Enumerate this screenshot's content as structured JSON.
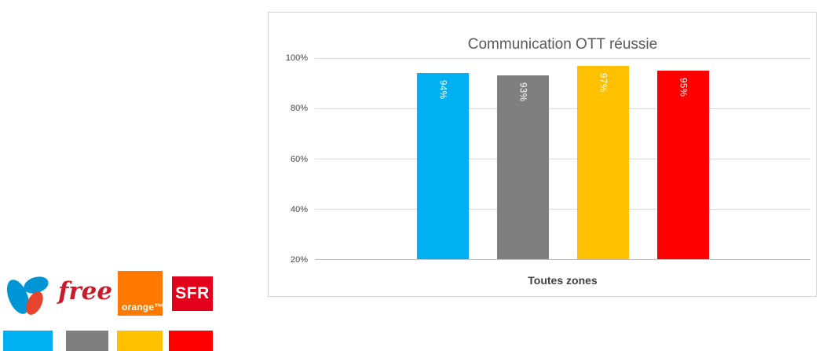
{
  "chart_data": {
    "type": "bar",
    "title": "Communication OTT réussie",
    "xlabel": "Toutes zones",
    "categories": [
      "Toutes zones"
    ],
    "series": [
      {
        "name": "Bouygues Telecom",
        "values": [
          94
        ],
        "label": "94%",
        "color": "#00B0F0"
      },
      {
        "name": "Free",
        "values": [
          93
        ],
        "label": "93%",
        "color": "#7F7F7F"
      },
      {
        "name": "Orange",
        "values": [
          97
        ],
        "label": "97%",
        "color": "#FFC000"
      },
      {
        "name": "SFR",
        "values": [
          95
        ],
        "label": "95%",
        "color": "#FF0000"
      }
    ],
    "ylim": [
      20,
      100
    ],
    "y_ticks": [
      "100%",
      "80%",
      "60%",
      "40%",
      "20%"
    ],
    "y_tick_values": [
      100,
      80,
      60,
      40,
      20
    ],
    "grid": true,
    "value_labels_inside_bars": true,
    "legend_position": "outside-bottom-left-logos"
  },
  "legend": {
    "swatch_colors": [
      "#00B0F0",
      "#7F7F7F",
      "#FFC000",
      "#FF0000"
    ],
    "logos": [
      {
        "id": "bouygues",
        "name": "Bouygues Telecom",
        "colors": {
          "blue": "#0096D5",
          "red": "#E8432D"
        }
      },
      {
        "id": "free",
        "name": "Free",
        "text": "free",
        "color": "#CB1B2A"
      },
      {
        "id": "orange",
        "name": "Orange",
        "text": "orange™",
        "color": "#FF7900"
      },
      {
        "id": "sfr",
        "name": "SFR",
        "text": "SFR",
        "color": "#E2001A"
      }
    ]
  }
}
